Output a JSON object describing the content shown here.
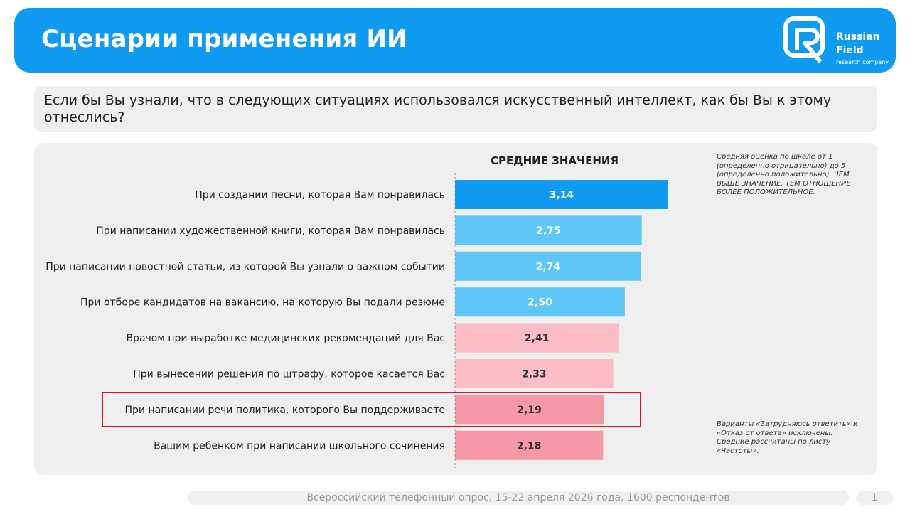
{
  "header": {
    "title": "Сценарии применения ИИ",
    "logo": {
      "icon": "russian-field-logo-icon",
      "line1": "Russian",
      "line2": "Field",
      "line3": "research company"
    }
  },
  "question": "Если бы Вы узнали, что в следующих ситуациях использовался искусственный интеллект, как бы Вы к этому отнеслись?",
  "notes": {
    "top": "Средняя оценка по шкале от 1 (определенно отрицательно) до 5 (определенно положительно). ЧЕМ ВЫШЕ ЗНАЧЕНИЕ, ТЕМ ОТНОШЕНИЕ БОЛЕЕ ПОЛОЖИТЕЛЬНОЕ.",
    "bottom": "Варианты «Затрудняюсь ответить» и «Отказ от ответа» исключены. Средние рассчитаны по листу «Частоты»."
  },
  "footer": {
    "source": "Всероссийский телефонный опрос, 15-22 апреля 2026 года, 1600 респондентов",
    "page": "1"
  },
  "colors": {
    "header_bg": "#109bf0",
    "bar_top": "#109bf0",
    "bar_blue": "#5ec7f8",
    "bar_pink_light": "#fbbcc6",
    "bar_pink": "#f598a8",
    "highlight": "#e0141a"
  },
  "chart_data": {
    "type": "bar",
    "orientation": "horizontal",
    "title": "СРЕДНИЕ ЗНАЧЕНИЯ",
    "categories": [
      "При создании песни, которая Вам понравилась",
      "При написании художественной книги, которая Вам понравилась",
      "При написании новостной статьи, из которой Вы узнали о важном событии",
      "При отборе кандидатов на вакансию, на которую Вы подали резюме",
      "Врачом при выработке медицинских рекомендаций для Вас",
      "При вынесении решения по штрафу, которое касается Вас",
      "При написании речи политика, которого Вы поддерживаете",
      "Вашим ребенком при написании школьного сочинения"
    ],
    "values": [
      3.14,
      2.75,
      2.74,
      2.5,
      2.41,
      2.33,
      2.19,
      2.18
    ],
    "labels": [
      "3,14",
      "2,75",
      "2,74",
      "2,50",
      "2,41",
      "2,33",
      "2,19",
      "2,18"
    ],
    "bar_colors": [
      "#109bf0",
      "#5ec7f8",
      "#5ec7f8",
      "#5ec7f8",
      "#fbbcc6",
      "#fbbcc6",
      "#f598a8",
      "#f598a8"
    ],
    "label_colors": [
      "#ffffff",
      "#ffffff",
      "#ffffff",
      "#ffffff",
      "#333333",
      "#333333",
      "#333333",
      "#333333"
    ],
    "highlighted_index": 6,
    "xlim": [
      0,
      3.14
    ],
    "grid": false,
    "legend": "none"
  }
}
